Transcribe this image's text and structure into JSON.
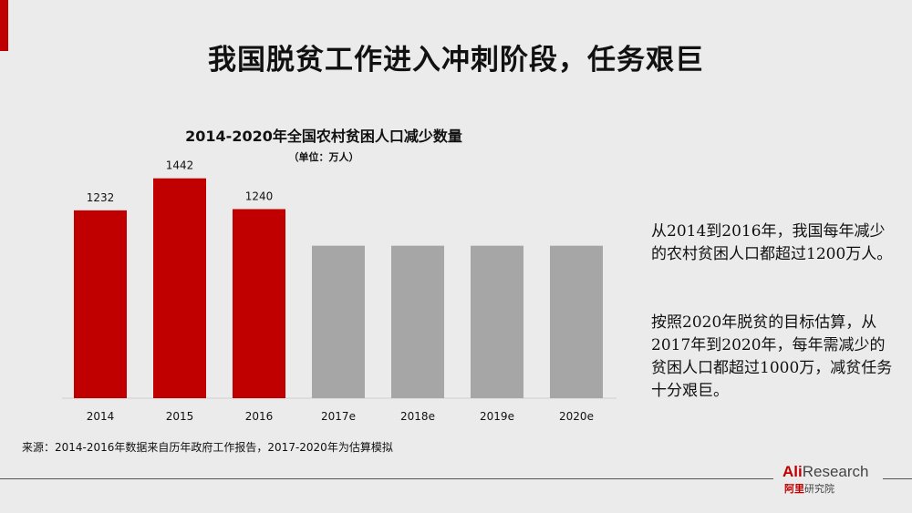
{
  "slide": {
    "title": "我国脱贫工作进入冲刺阶段，任务艰巨",
    "source": "来源：2014-2016年数据来自历年政府工作报告，2017-2020年为估算模拟",
    "note_1": "从2014到2016年，我国每年减少的农村贫困人口都超过1200万人。",
    "note_2": "按照2020年脱贫的目标估算，从2017年到2020年，每年需减少的贫困人口都超过1000万，减贫任务十分艰巨。",
    "logo": {
      "brand_red": "Ali",
      "brand_gray": "Research",
      "sub_red": "阿里",
      "sub_gray": "研究院"
    }
  },
  "colors": {
    "actual": "#c00000",
    "estimate": "#a6a6a6",
    "accent": "#c00000"
  },
  "chart_data": {
    "type": "bar",
    "title": "2014-2020年全国农村贫困人口减少数量",
    "subtitle": "（单位：万人）",
    "categories": [
      "2014",
      "2015",
      "2016",
      "2017e",
      "2018e",
      "2019e",
      "2020e"
    ],
    "values": [
      1232,
      1442,
      1240,
      1000,
      1000,
      1000,
      1000
    ],
    "data_labels": [
      "1232",
      "1442",
      "1240",
      "",
      "",
      "",
      ""
    ],
    "bar_kind": [
      "actual",
      "actual",
      "actual",
      "estimate",
      "estimate",
      "estimate",
      "estimate"
    ],
    "ylim": [
      0,
      1500
    ],
    "grid": false,
    "legend": "none"
  }
}
